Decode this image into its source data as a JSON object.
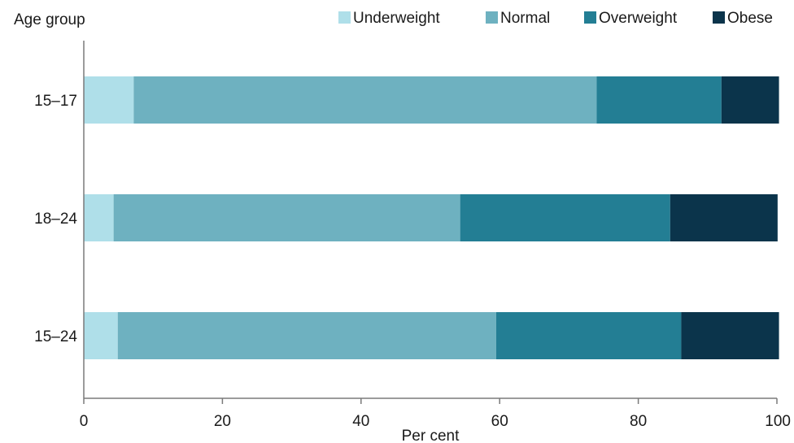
{
  "chart_data": {
    "type": "bar",
    "orientation": "horizontal",
    "stacked": true,
    "ylabel": "Age group",
    "xlabel": "Per cent",
    "xlim": [
      0,
      100
    ],
    "xticks": [
      0,
      20,
      40,
      60,
      80,
      100
    ],
    "grid": false,
    "legend_position": "top-right",
    "categories": [
      "15–17",
      "18–24",
      "15–24"
    ],
    "series": [
      {
        "name": "Underweight",
        "color": "#afdfe9",
        "values": [
          7.2,
          4.3,
          4.9
        ]
      },
      {
        "name": "Normal",
        "color": "#6eb1c0",
        "values": [
          66.8,
          50.0,
          54.6
        ]
      },
      {
        "name": "Overweight",
        "color": "#237e94",
        "values": [
          18.0,
          30.3,
          26.7
        ]
      },
      {
        "name": "Obese",
        "color": "#0b344b",
        "values": [
          8.3,
          15.5,
          14.1
        ]
      }
    ]
  }
}
